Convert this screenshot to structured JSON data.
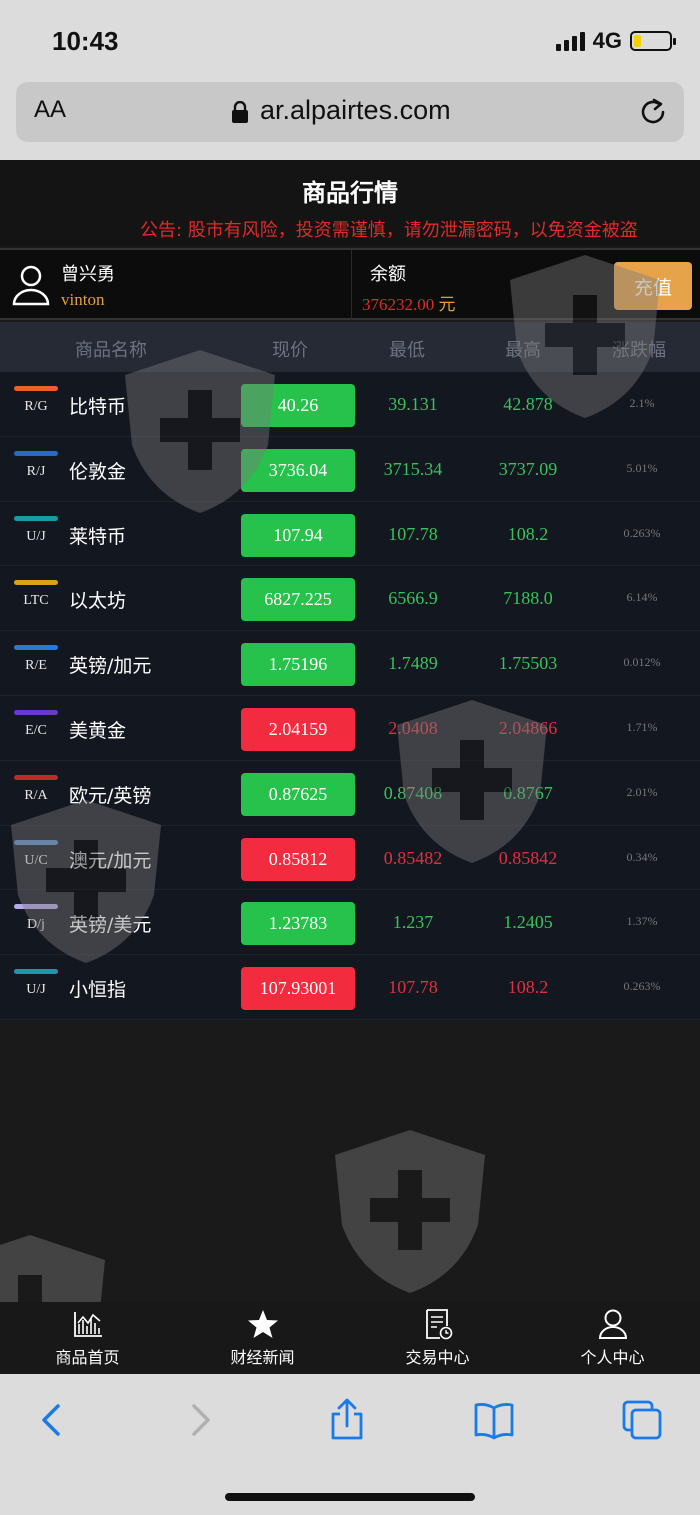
{
  "status": {
    "time": "10:43",
    "network": "4G"
  },
  "browser": {
    "aa_label": "AA",
    "url": "ar.alpairtes.com"
  },
  "app": {
    "title": "商品行情",
    "notice": "公告: 股市有风险，投资需谨慎，请勿泄漏密码，以免资金被盗"
  },
  "account": {
    "name": "曾兴勇",
    "id": "vinton",
    "balance_label": "余额",
    "balance_value": "376232.00",
    "balance_unit": "元",
    "recharge_label": "充值"
  },
  "table": {
    "headers": [
      "商品名称",
      "现价",
      "最低",
      "最高",
      "涨跌幅"
    ],
    "rows": [
      {
        "code": "R/G",
        "name": "比特币",
        "price": "40.26",
        "low": "39.131",
        "high": "42.878",
        "change": "2.1%",
        "trend": "up",
        "tag_color": "#e8622a"
      },
      {
        "code": "R/J",
        "name": "伦敦金",
        "price": "3736.04",
        "low": "3715.34",
        "high": "3737.09",
        "change": "5.01%",
        "trend": "up",
        "tag_color": "#2a68c8"
      },
      {
        "code": "U/J",
        "name": "莱特币",
        "price": "107.94",
        "low": "107.78",
        "high": "108.2",
        "change": "0.263%",
        "trend": "up",
        "tag_color": "#1a9aa6"
      },
      {
        "code": "LTC",
        "name": "以太坊",
        "price": "6827.225",
        "low": "6566.9",
        "high": "7188.0",
        "change": "6.14%",
        "trend": "up",
        "tag_color": "#d9a21a"
      },
      {
        "code": "R/E",
        "name": "英镑/加元",
        "price": "1.75196",
        "low": "1.7489",
        "high": "1.75503",
        "change": "0.012%",
        "trend": "up",
        "tag_color": "#2a78d8"
      },
      {
        "code": "E/C",
        "name": "美黄金",
        "price": "2.04159",
        "low": "2.0408",
        "high": "2.04866",
        "change": "1.71%",
        "trend": "down",
        "tag_color": "#6a3ac8"
      },
      {
        "code": "R/A",
        "name": "欧元/英镑",
        "price": "0.87625",
        "low": "0.87408",
        "high": "0.8767",
        "change": "2.01%",
        "trend": "up",
        "tag_color": "#c02a2a"
      },
      {
        "code": "U/C",
        "name": "澳元/加元",
        "price": "0.85812",
        "low": "0.85482",
        "high": "0.85842",
        "change": "0.34%",
        "trend": "down",
        "tag_color": "#5a8ac8"
      },
      {
        "code": "D/j",
        "name": "英镑/美元",
        "price": "1.23783",
        "low": "1.237",
        "high": "1.2405",
        "change": "1.37%",
        "trend": "up",
        "tag_color": "#b8a8e8"
      },
      {
        "code": "U/J",
        "name": "小恒指",
        "price": "107.93001",
        "low": "107.78",
        "high": "108.2",
        "change": "0.263%",
        "trend": "down",
        "tag_color": "#1a9aa6"
      }
    ]
  },
  "colors": {
    "up": "#27c24c",
    "down": "#f22b3e",
    "up_text": "#39c25a",
    "down_text": "#e0303f"
  },
  "nav": [
    {
      "label": "商品首页",
      "icon": "chart-icon"
    },
    {
      "label": "财经新闻",
      "icon": "star-icon"
    },
    {
      "label": "交易中心",
      "icon": "document-icon"
    },
    {
      "label": "个人中心",
      "icon": "person-icon"
    }
  ]
}
